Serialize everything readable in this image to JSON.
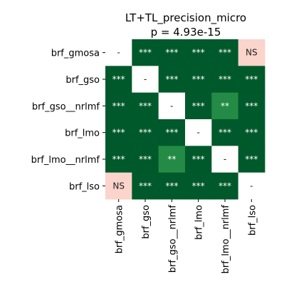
{
  "chart_data": {
    "type": "heatmap",
    "title": "LT+TL_precision_micro",
    "subtitle": "p = 4.93e-15",
    "row_labels": [
      "brf_gmosa",
      "brf_gso",
      "brf_gso__nrlmf",
      "brf_lmo",
      "brf_lmo__nrlmf",
      "brf_lso"
    ],
    "col_labels": [
      "brf_gmosa",
      "brf_gso",
      "brf_gso__nrlmf",
      "brf_lmo",
      "brf_lmo__nrlmf",
      "brf_lso"
    ],
    "cells": [
      [
        "-",
        "***",
        "***",
        "***",
        "***",
        "NS"
      ],
      [
        "***",
        "-",
        "***",
        "***",
        "***",
        "***"
      ],
      [
        "***",
        "***",
        "-",
        "***",
        "**",
        "***"
      ],
      [
        "***",
        "***",
        "***",
        "-",
        "***",
        "***"
      ],
      [
        "***",
        "***",
        "**",
        "***",
        "-",
        "***"
      ],
      [
        "NS",
        "***",
        "***",
        "***",
        "***",
        "-"
      ]
    ],
    "colors": {
      "***": "#00592a",
      "**": "#238b45",
      "NS": "#fbd4cb",
      "-": "#ffffff"
    },
    "text_colors": {
      "***": "#ffffff",
      "**": "#ffffff",
      "NS": "#222222",
      "-": "#222222"
    }
  }
}
